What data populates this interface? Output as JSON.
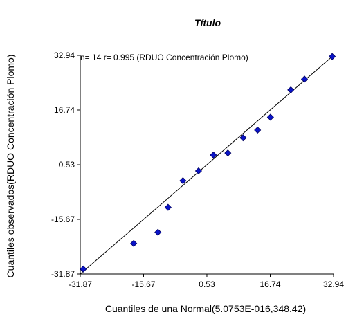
{
  "chart_data": {
    "type": "scatter",
    "title": "Título",
    "xlabel": "Cuantiles de una Normal(5.0753E-016,348.42)",
    "ylabel": "Cuantiles observados(RDUO Concentración Plomo)",
    "annotation": "n= 14 r= 0.995 (RDUO Concentración Plomo)",
    "xlim": [
      -31.87,
      32.94
    ],
    "ylim": [
      -31.87,
      32.94
    ],
    "x_ticks": [
      "-31.87",
      "-15.67",
      "0.53",
      "16.74",
      "32.94"
    ],
    "y_ticks": [
      "-31.87",
      "-15.67",
      "0.53",
      "16.74",
      "32.94"
    ],
    "x_tick_values": [
      -31.87,
      -15.67,
      0.53,
      16.74,
      32.94
    ],
    "y_tick_values": [
      -31.87,
      -15.67,
      0.53,
      16.74,
      32.94
    ],
    "grid": false,
    "reference_line": {
      "x": [
        -31.87,
        32.94
      ],
      "y": [
        -31.87,
        32.94
      ]
    },
    "series": [
      {
        "points": [
          {
            "x": -31.1,
            "y": -30.4
          },
          {
            "x": -18.2,
            "y": -22.8
          },
          {
            "x": -12.0,
            "y": -19.5
          },
          {
            "x": -9.4,
            "y": -12.1
          },
          {
            "x": -5.6,
            "y": -4.2
          },
          {
            "x": -1.6,
            "y": -1.3
          },
          {
            "x": 2.2,
            "y": 3.4
          },
          {
            "x": 5.9,
            "y": 4.0
          },
          {
            "x": 9.8,
            "y": 8.5
          },
          {
            "x": 13.5,
            "y": 10.8
          },
          {
            "x": 16.8,
            "y": 14.6
          },
          {
            "x": 22.0,
            "y": 22.7
          },
          {
            "x": 25.5,
            "y": 25.9
          },
          {
            "x": 32.6,
            "y": 32.6
          }
        ]
      }
    ],
    "colors": {
      "marker": "#0a14c8",
      "marker_edge": "#000060",
      "line": "#000000",
      "axis": "#000000"
    }
  }
}
